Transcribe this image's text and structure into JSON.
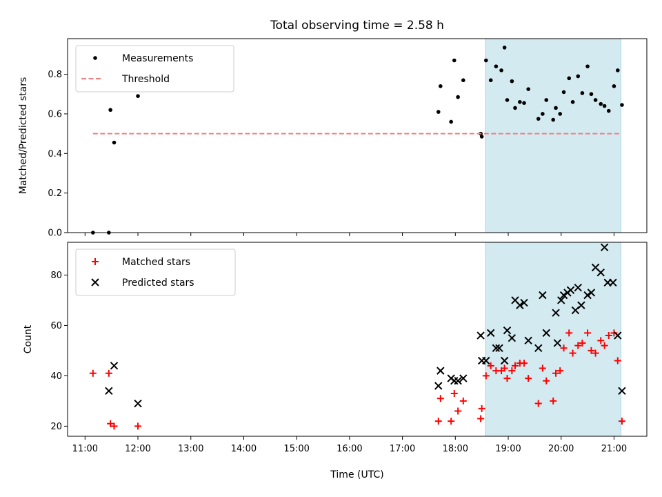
{
  "title": "Total observing time = 2.58 h",
  "xlabel": "Time (UTC)",
  "colors": {
    "shade": "#d3eaf1",
    "shade_edge": "#a8d4e3",
    "threshold": "#f08080",
    "matched": "#ff0000",
    "predicted": "#000000",
    "measurement": "#000000"
  },
  "chart_data": [
    {
      "type": "scatter",
      "panel": "top",
      "xlabel": "",
      "ylabel": "Matched/Predicted stars",
      "x_unit": "hour_utc",
      "xlim": [
        10.67,
        21.62
      ],
      "ylim": [
        0.0,
        0.98
      ],
      "yticks": [
        0.0,
        0.2,
        0.4,
        0.6,
        0.8
      ],
      "ytick_labels": [
        "0.0",
        "0.2",
        "0.4",
        "0.6",
        "0.8"
      ],
      "legend": {
        "placement": "top-left",
        "entries": [
          "Measurements",
          "Threshold"
        ]
      },
      "shaded_region": [
        18.57,
        21.13
      ],
      "series": [
        {
          "name": "Measurements",
          "marker": "dot",
          "x": [
            11.15,
            11.45,
            11.48,
            11.55,
            12.0,
            17.68,
            17.72,
            17.92,
            17.98,
            18.05,
            18.15,
            18.48,
            18.5,
            18.58,
            18.67,
            18.77,
            18.87,
            18.93,
            18.98,
            19.07,
            19.13,
            19.22,
            19.3,
            19.38,
            19.57,
            19.65,
            19.72,
            19.85,
            19.9,
            19.98,
            20.05,
            20.15,
            20.22,
            20.32,
            20.4,
            20.5,
            20.57,
            20.65,
            20.75,
            20.82,
            20.9,
            21.0,
            21.07,
            21.15
          ],
          "y": [
            0.0,
            0.0,
            0.62,
            0.455,
            0.69,
            0.61,
            0.74,
            0.56,
            0.87,
            0.685,
            0.77,
            0.5,
            0.485,
            0.87,
            0.77,
            0.84,
            0.82,
            0.935,
            0.67,
            0.765,
            0.63,
            0.66,
            0.655,
            0.725,
            0.575,
            0.6,
            0.67,
            0.57,
            0.63,
            0.6,
            0.71,
            0.78,
            0.66,
            0.79,
            0.705,
            0.84,
            0.7,
            0.67,
            0.65,
            0.64,
            0.615,
            0.74,
            0.82,
            0.645
          ]
        },
        {
          "name": "Threshold",
          "marker": "dashed-line",
          "x": [
            11.15,
            21.13
          ],
          "y": [
            0.5,
            0.5
          ]
        }
      ]
    },
    {
      "type": "scatter",
      "panel": "bottom",
      "xlabel": "Time (UTC)",
      "ylabel": "Count",
      "x_unit": "hour_utc",
      "xlim": [
        10.67,
        21.62
      ],
      "ylim": [
        16,
        93
      ],
      "yticks": [
        20,
        40,
        60,
        80
      ],
      "ytick_labels": [
        "20",
        "40",
        "60",
        "80"
      ],
      "xticks": [
        11,
        12,
        13,
        14,
        15,
        16,
        17,
        18,
        19,
        20,
        21
      ],
      "xtick_labels": [
        "11:00",
        "12:00",
        "13:00",
        "14:00",
        "15:00",
        "16:00",
        "17:00",
        "18:00",
        "19:00",
        "20:00",
        "21:00"
      ],
      "legend": {
        "placement": "top-left",
        "entries": [
          "Matched stars",
          "Predicted stars"
        ]
      },
      "shaded_region": [
        18.57,
        21.13
      ],
      "series": [
        {
          "name": "Matched stars",
          "marker": "plus",
          "x": [
            11.15,
            11.45,
            11.48,
            11.55,
            12.0,
            17.68,
            17.72,
            17.92,
            17.98,
            18.05,
            18.15,
            18.48,
            18.5,
            18.58,
            18.67,
            18.77,
            18.87,
            18.93,
            18.98,
            19.07,
            19.13,
            19.22,
            19.3,
            19.38,
            19.57,
            19.65,
            19.72,
            19.85,
            19.9,
            19.98,
            20.05,
            20.15,
            20.22,
            20.32,
            20.4,
            20.5,
            20.57,
            20.65,
            20.75,
            20.82,
            20.9,
            21.0,
            21.07,
            21.15
          ],
          "y": [
            41,
            41,
            21,
            20,
            20,
            22,
            31,
            22,
            33,
            26,
            30,
            23,
            27,
            40,
            44,
            42,
            42,
            43,
            39,
            42,
            44,
            45,
            45,
            39,
            29,
            43,
            38,
            30,
            41,
            42,
            51,
            57,
            49,
            52,
            53,
            57,
            50,
            49,
            54,
            52,
            56,
            57,
            46,
            22
          ]
        },
        {
          "name": "Predicted stars",
          "marker": "x",
          "x": [
            11.45,
            11.55,
            12.0,
            17.68,
            17.72,
            17.92,
            17.98,
            18.05,
            18.15,
            18.48,
            18.5,
            18.58,
            18.67,
            18.77,
            18.83,
            18.93,
            18.98,
            19.07,
            19.13,
            19.22,
            19.3,
            19.38,
            19.57,
            19.65,
            19.72,
            19.9,
            19.93,
            20.0,
            20.05,
            20.12,
            20.18,
            20.27,
            20.32,
            20.38,
            20.5,
            20.57,
            20.65,
            20.75,
            20.82,
            20.88,
            20.98,
            21.07,
            21.15
          ],
          "y": [
            34,
            44,
            29,
            36,
            42,
            39,
            38,
            38,
            39,
            56,
            46,
            46,
            57,
            51,
            51,
            46,
            58,
            55,
            70,
            68,
            69,
            54,
            51,
            72,
            57,
            65,
            53,
            70,
            72,
            73,
            74,
            66,
            75,
            68,
            72,
            73,
            83,
            81,
            91,
            77,
            77,
            56,
            34
          ]
        }
      ]
    }
  ]
}
